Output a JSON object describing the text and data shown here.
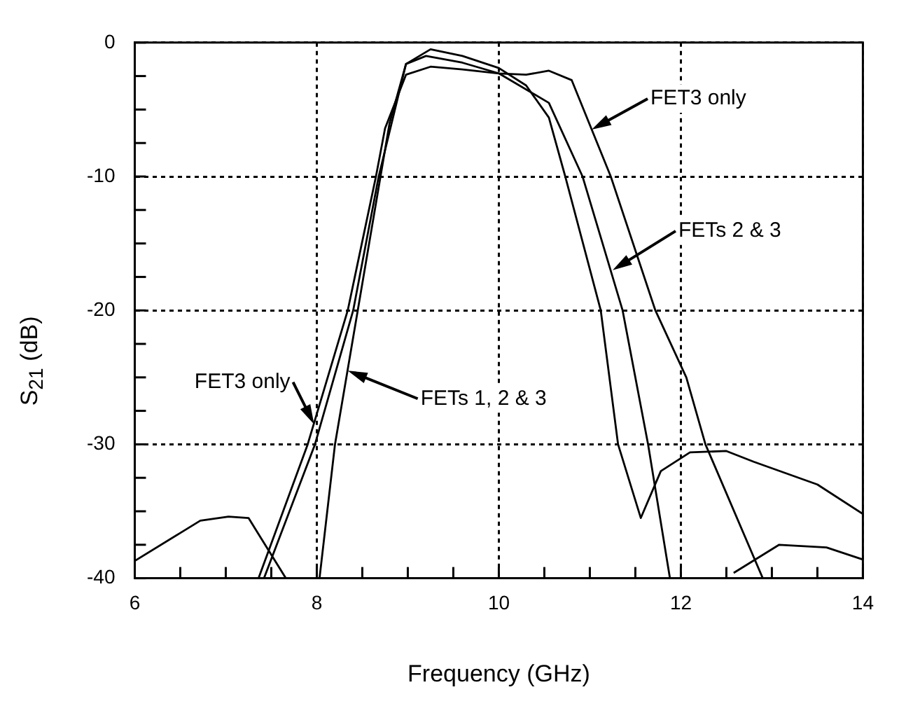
{
  "chart_data": {
    "type": "line",
    "xlabel": "Frequency (GHz)",
    "ylabel": "S$_{21}$ (dB)",
    "xlim": [
      6,
      14
    ],
    "xticks": [
      6,
      8,
      10,
      12,
      14
    ],
    "ylim": [
      -40,
      0
    ],
    "yticks": [
      -40,
      -30,
      -20,
      -10,
      0
    ],
    "grid": true,
    "legend": false,
    "marker": "none",
    "line_style": "solid",
    "series": [
      {
        "color": "#000000",
        "x": [
          7.36,
          7.9,
          8.34,
          8.65,
          8.75,
          8.98,
          9.25,
          9.6,
          10.0,
          10.3,
          10.55,
          10.8,
          11.23,
          11.72,
          12.06,
          12.27,
          12.9,
          12.75,
          12.58,
          13.08,
          13.6,
          14
        ],
        "values": [
          -40,
          -30,
          -20,
          -10,
          -6.4,
          -2.4,
          -1.8,
          -2.0,
          -2.3,
          -2.4,
          -2.1,
          -2.8,
          -10,
          -20,
          -25,
          -30,
          -40,
          null,
          -39.6,
          -37.5,
          -37.7,
          -38.6
        ]
      },
      {
        "color": "#000000",
        "x": [
          6,
          6.72,
          7.03,
          7.25,
          7.66,
          7.5,
          7.42,
          7.98,
          8.4,
          8.68,
          8.98,
          9.2,
          9.6,
          10.0,
          10.55,
          10.92,
          11.36,
          11.64,
          11.88
        ],
        "values": [
          -38.7,
          -35.7,
          -35.4,
          -35.5,
          -40,
          null,
          -40,
          -30,
          -20,
          -10,
          -1.6,
          -1.0,
          -1.5,
          -2.3,
          -4.5,
          -10,
          -20,
          -30,
          -40
        ]
      },
      {
        "color": "#000000",
        "x": [
          8.03,
          8.2,
          8.45,
          8.7,
          8.8,
          8.98,
          9.25,
          9.6,
          10.0,
          10.3,
          10.55,
          10.73,
          11.12,
          11.31,
          11.56,
          11.78,
          12.1,
          12.5,
          12.8,
          13.5,
          14
        ],
        "values": [
          -40,
          -30,
          -20,
          -10,
          -6,
          -1.6,
          -0.5,
          -1.0,
          -1.9,
          -3.2,
          -5.6,
          -10,
          -20,
          -30,
          -35.5,
          -32,
          -30.6,
          -30.5,
          -31.3,
          -33,
          -35.2
        ]
      }
    ],
    "annotations": [
      {
        "text": "FET3 only",
        "x": 11.02,
        "y": -6.5
      },
      {
        "text": "FETs 2 & 3",
        "x": 11.25,
        "y": -17
      },
      {
        "text": "FET3 only",
        "x": 7.97,
        "y": -28.5
      },
      {
        "text": "FETs 1, 2 & 3",
        "x": 8.34,
        "y": -24.5
      }
    ]
  }
}
